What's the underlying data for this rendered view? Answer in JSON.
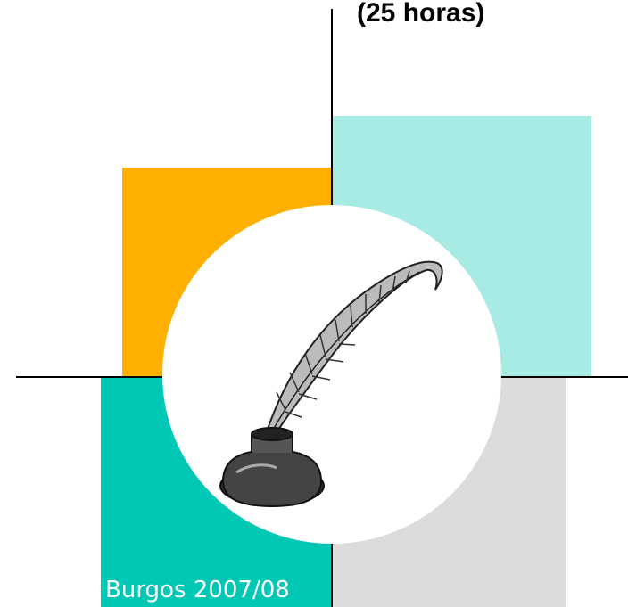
{
  "header": {
    "subtitle": "(25 horas)"
  },
  "footer": {
    "place_year": "Burgos 2007/08"
  }
}
